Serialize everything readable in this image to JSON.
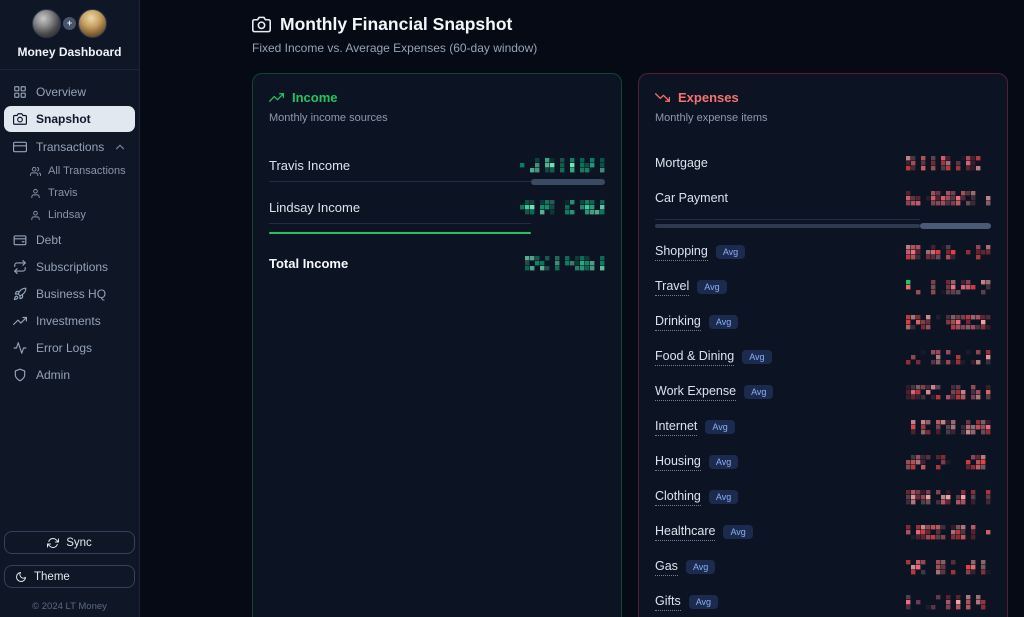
{
  "app": {
    "title": "Money Dashboard",
    "copyright": "© 2024 LT Money"
  },
  "colors": {
    "income_accent": "#22c55e",
    "expense_accent": "#f87171",
    "income_pixels": [
      "#34d399",
      "#10b981",
      "#059669",
      "#6ee7b7"
    ],
    "expense_pixels": [
      "#f87171",
      "#fb7185",
      "#ef4444",
      "#fca5a5"
    ],
    "badge_bg": "#1c2a4e",
    "badge_text": "#8ab0f8"
  },
  "sidebar": {
    "items": [
      {
        "label": "Overview",
        "icon": "grid",
        "active": false
      },
      {
        "label": "Snapshot",
        "icon": "camera",
        "active": true
      },
      {
        "label": "Transactions",
        "icon": "credit-card",
        "active": false,
        "expanded": true,
        "children": [
          {
            "label": "All Transactions",
            "icon": "users"
          },
          {
            "label": "Travis",
            "icon": "user"
          },
          {
            "label": "Lindsay",
            "icon": "user"
          }
        ]
      },
      {
        "label": "Debt",
        "icon": "wallet",
        "active": false
      },
      {
        "label": "Subscriptions",
        "icon": "repeat",
        "active": false
      },
      {
        "label": "Business HQ",
        "icon": "rocket",
        "active": false
      },
      {
        "label": "Investments",
        "icon": "trending-up",
        "active": false
      },
      {
        "label": "Error Logs",
        "icon": "activity",
        "active": false
      },
      {
        "label": "Admin",
        "icon": "shield",
        "active": false
      }
    ],
    "sync_label": "Sync",
    "theme_label": "Theme"
  },
  "header": {
    "title": "Monthly Financial Snapshot",
    "subtitle": "Fixed Income vs. Average Expenses (60-day window)"
  },
  "income_card": {
    "title": "Income",
    "subtitle": "Monthly income sources",
    "rows": [
      {
        "label": "Travis Income",
        "bold": false,
        "value_redacted": true,
        "after": "scrollbar"
      },
      {
        "label": "Lindsay Income",
        "bold": false,
        "value_redacted": true,
        "after": "greenline"
      },
      {
        "label": "Total Income",
        "bold": true,
        "value_redacted": true,
        "after": "none"
      }
    ]
  },
  "expenses_card": {
    "title": "Expenses",
    "subtitle": "Monthly expense items",
    "badge_label": "Avg",
    "rows": [
      {
        "label": "Mortgage",
        "avg": false,
        "value_redacted": true,
        "after": "none"
      },
      {
        "label": "Car Payment",
        "avg": false,
        "value_redacted": true,
        "after": "scrollbar"
      },
      {
        "label": "Shopping",
        "avg": true,
        "value_redacted": true,
        "after": "none"
      },
      {
        "label": "Travel",
        "avg": true,
        "value_redacted": true,
        "after": "none",
        "fleck": "#22c55e"
      },
      {
        "label": "Drinking",
        "avg": true,
        "value_redacted": true,
        "after": "none"
      },
      {
        "label": "Food & Dining",
        "avg": true,
        "value_redacted": true,
        "after": "none"
      },
      {
        "label": "Work Expense",
        "avg": true,
        "value_redacted": true,
        "after": "none"
      },
      {
        "label": "Internet",
        "avg": true,
        "value_redacted": true,
        "after": "none"
      },
      {
        "label": "Housing",
        "avg": true,
        "value_redacted": true,
        "after": "none"
      },
      {
        "label": "Clothing",
        "avg": true,
        "value_redacted": true,
        "after": "none"
      },
      {
        "label": "Healthcare",
        "avg": true,
        "value_redacted": true,
        "after": "none"
      },
      {
        "label": "Gas",
        "avg": true,
        "value_redacted": true,
        "after": "none"
      },
      {
        "label": "Gifts",
        "avg": true,
        "value_redacted": true,
        "after": "none"
      }
    ]
  }
}
